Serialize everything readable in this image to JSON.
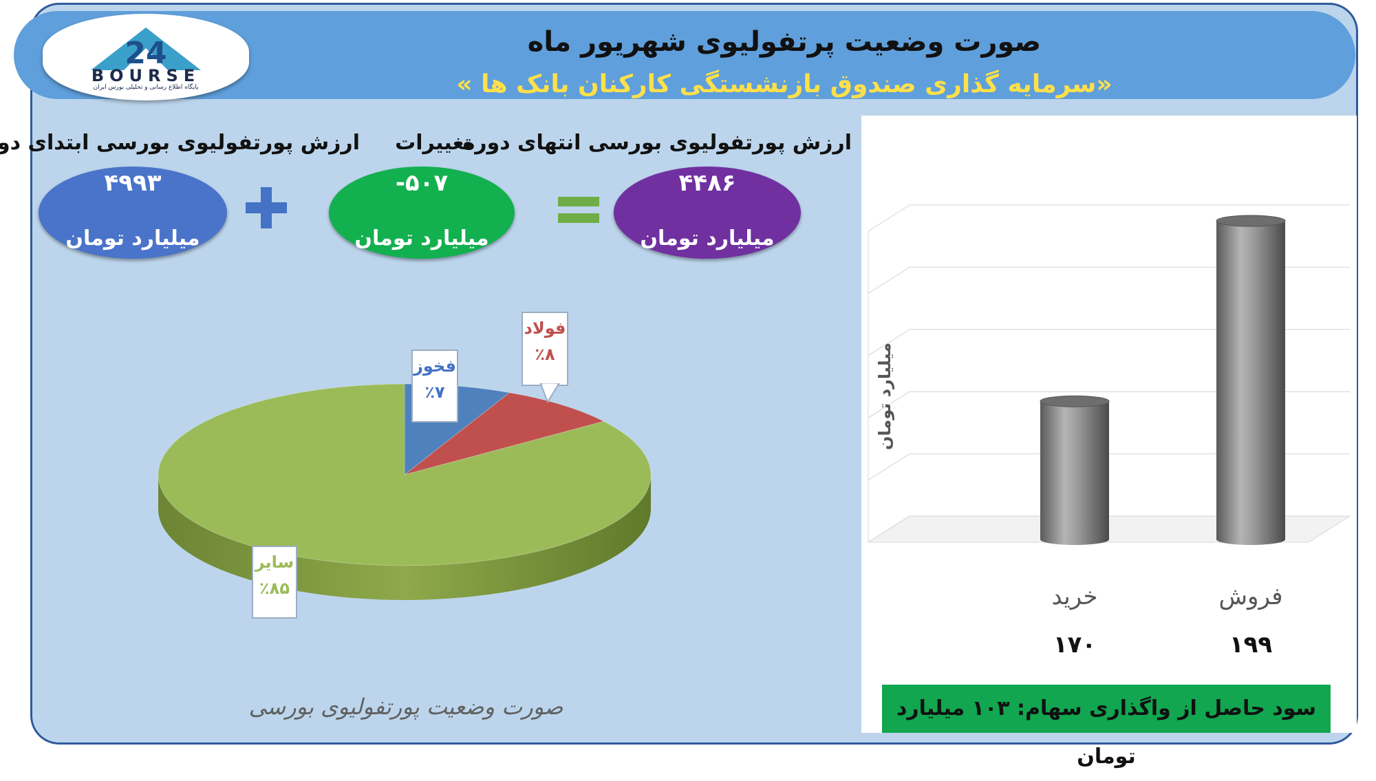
{
  "header": {
    "title": "صورت وضعیت پرتفولیوی شهریور ماه",
    "subtitle": "«سرمایه گذاری صندوق بازنشستگی کارکنان بانک ها »"
  },
  "logo": {
    "text": "BOURSE",
    "caption": "پایگاه اطلاع رسانی و تحلیلی بورس ایران"
  },
  "metrics": {
    "start": {
      "title": "ارزش پورتفولیوی بورسی ابتدای دوره",
      "value": "۴۹۹۳",
      "unit": "میلیارد تومان",
      "color": "#4a74c9"
    },
    "change": {
      "title": "تغییرات",
      "value": "-۵۰۷",
      "unit": "میلیارد تومان",
      "color": "#13b04f"
    },
    "end": {
      "title": "ارزش پورتفولیوی بورسی انتهای دوره",
      "value": "۴۴۸۶",
      "unit": "میلیارد تومان",
      "color": "#7030a0"
    },
    "plus_symbol": "+",
    "equals_symbol": "="
  },
  "profit_note": "سود حاصل از واگذاری سهام: ۱۰۳ میلیارد تومان",
  "chart_data": [
    {
      "type": "pie",
      "title": "صورت وضعیت پورتفولیوی بورسی",
      "slices": [
        {
          "label": "فخوز",
          "value": 7,
          "pct_label": "٪۷",
          "color": "#4f81bd"
        },
        {
          "label": "فولاد",
          "value": 8,
          "pct_label": "٪۸",
          "color": "#c0504d"
        },
        {
          "label": "سایر",
          "value": 85,
          "pct_label": "٪۸۵",
          "color": "#9bbb59"
        }
      ]
    },
    {
      "type": "bar",
      "categories": [
        "خرید",
        "فروش"
      ],
      "values": [
        170,
        199
      ],
      "value_labels": [
        "۱۷۰",
        "۱۹۹"
      ],
      "ylabel": "میلیارد تومان",
      "ylim": [
        150,
        200
      ],
      "yticks": [
        150,
        160,
        170,
        180,
        190,
        200
      ],
      "grid": true,
      "bar_color": "#7f7f7f"
    }
  ]
}
